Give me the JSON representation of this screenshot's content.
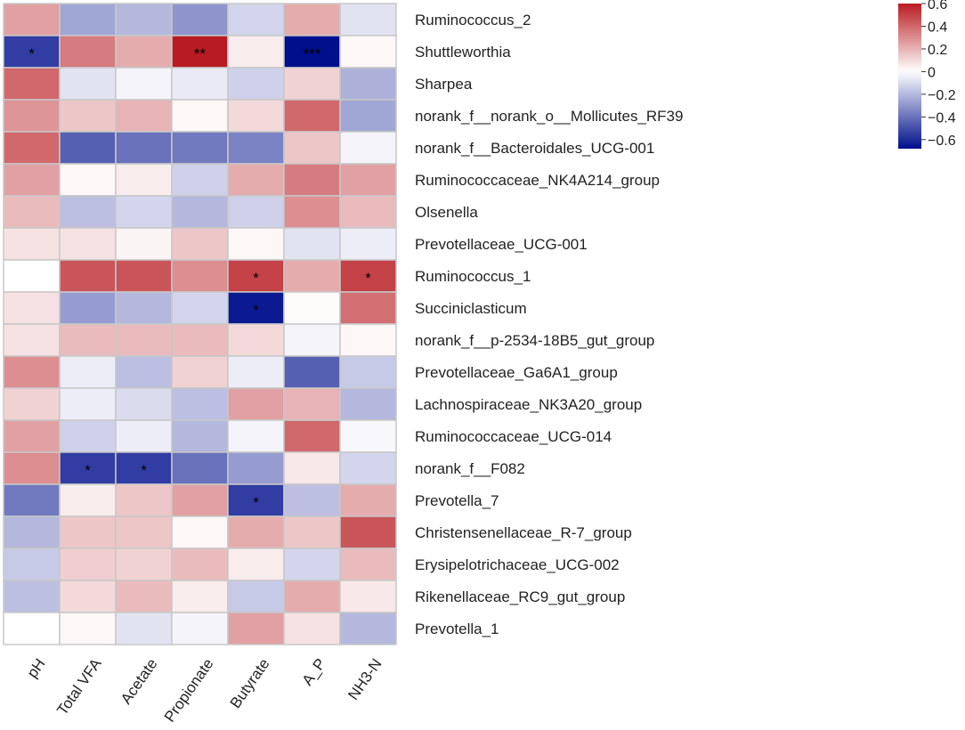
{
  "chart_data": {
    "type": "heatmap",
    "title": "",
    "columns": [
      "pH",
      "Total VFA",
      "Acetate",
      "Propionate",
      "Butyrate",
      "A_P",
      "NH3-N"
    ],
    "rows": [
      "Ruminococcus_2",
      "Shuttleworthia",
      "Sharpea",
      "norank_f__norank_o__Mollicutes_RF39",
      "norank_f__Bacteroidales_UCG-001",
      "Ruminococcaceae_NK4A214_group",
      "Olsenella",
      "Prevotellaceae_UCG-001",
      "Ruminococcus_1",
      "Succiniclasticum",
      "norank_f__p-2534-18B5_gut_group",
      "Prevotellaceae_Ga6A1_group",
      "Lachnospiraceae_NK3A20_group",
      "Ruminococcaceae_UCG-014",
      "norank_f__F082",
      "Prevotella_7",
      "Christensenellaceae_R-7_group",
      "Erysipelotrichaceae_UCG-002",
      "Rikenellaceae_RC9_gut_group",
      "Prevotella_1"
    ],
    "values": [
      [
        0.25,
        -0.25,
        -0.2,
        -0.3,
        -0.12,
        0.22,
        -0.08
      ],
      [
        -0.55,
        0.35,
        0.22,
        0.6,
        0.05,
        -0.68,
        0.02
      ],
      [
        0.4,
        -0.08,
        -0.03,
        -0.06,
        -0.13,
        0.12,
        -0.22
      ],
      [
        0.28,
        0.15,
        0.2,
        0.02,
        0.1,
        0.4,
        -0.25
      ],
      [
        0.4,
        -0.45,
        -0.4,
        -0.38,
        -0.35,
        0.15,
        -0.03
      ],
      [
        0.25,
        0.02,
        0.05,
        -0.13,
        0.22,
        0.35,
        0.25
      ],
      [
        0.18,
        -0.18,
        -0.12,
        -0.2,
        -0.13,
        0.3,
        0.18
      ],
      [
        0.08,
        0.08,
        0.03,
        0.15,
        0.02,
        -0.08,
        -0.05
      ],
      [
        0.0,
        0.45,
        0.45,
        0.3,
        0.5,
        0.22,
        0.5
      ],
      [
        0.08,
        -0.28,
        -0.2,
        -0.12,
        -0.65,
        0.01,
        0.38
      ],
      [
        0.08,
        0.18,
        0.18,
        0.18,
        0.1,
        -0.03,
        0.02
      ],
      [
        0.3,
        -0.05,
        -0.18,
        0.12,
        -0.05,
        -0.45,
        -0.15
      ],
      [
        0.12,
        -0.05,
        -0.1,
        -0.18,
        0.25,
        0.2,
        -0.2
      ],
      [
        0.25,
        -0.13,
        -0.05,
        -0.2,
        -0.03,
        0.4,
        -0.02
      ],
      [
        0.3,
        -0.55,
        -0.55,
        -0.4,
        -0.28,
        0.06,
        -0.12
      ],
      [
        -0.38,
        0.05,
        0.15,
        0.25,
        -0.55,
        -0.18,
        0.22
      ],
      [
        -0.2,
        0.15,
        0.15,
        0.02,
        0.22,
        0.15,
        0.45
      ],
      [
        -0.15,
        0.13,
        0.12,
        0.18,
        0.05,
        -0.12,
        0.18
      ],
      [
        -0.18,
        0.1,
        0.18,
        0.05,
        -0.15,
        0.22,
        0.06
      ],
      [
        0.0,
        0.02,
        -0.08,
        -0.03,
        0.25,
        0.08,
        -0.2
      ]
    ],
    "annotations": [
      [
        "",
        "",
        "",
        "",
        "",
        "",
        ""
      ],
      [
        "*",
        "",
        "",
        "**",
        "",
        "***",
        ""
      ],
      [
        "",
        "",
        "",
        "",
        "",
        "",
        ""
      ],
      [
        "",
        "",
        "",
        "",
        "",
        "",
        ""
      ],
      [
        "",
        "",
        "",
        "",
        "",
        "",
        ""
      ],
      [
        "",
        "",
        "",
        "",
        "",
        "",
        ""
      ],
      [
        "",
        "",
        "",
        "",
        "",
        "",
        ""
      ],
      [
        "",
        "",
        "",
        "",
        "",
        "",
        ""
      ],
      [
        "",
        "",
        "",
        "",
        "*",
        "",
        "*"
      ],
      [
        "",
        "",
        "",
        "",
        "*",
        "",
        ""
      ],
      [
        "",
        "",
        "",
        "",
        "",
        "",
        ""
      ],
      [
        "",
        "",
        "",
        "",
        "",
        "",
        ""
      ],
      [
        "",
        "",
        "",
        "",
        "",
        "",
        ""
      ],
      [
        "",
        "",
        "",
        "",
        "",
        "",
        ""
      ],
      [
        "",
        "*",
        "*",
        "",
        "",
        "",
        ""
      ],
      [
        "",
        "",
        "",
        "",
        "*",
        "",
        ""
      ],
      [
        "",
        "",
        "",
        "",
        "",
        "",
        ""
      ],
      [
        "",
        "",
        "",
        "",
        "",
        "",
        ""
      ],
      [
        "",
        "",
        "",
        "",
        "",
        "",
        ""
      ],
      [
        "",
        "",
        "",
        "",
        "",
        "",
        ""
      ]
    ],
    "color_range": [
      -0.68,
      0.6
    ],
    "colors": {
      "low": "#000f8c",
      "mid": "#ffffff",
      "high": "#b81c22"
    },
    "colorbar_ticks": [
      0.6,
      0.4,
      0.2,
      0,
      -0.2,
      -0.4,
      -0.6
    ],
    "colorbar_tick_labels": [
      "0.6",
      "0.4",
      "0.2",
      "0",
      "−0.2",
      "−0.4",
      "−0.6"
    ],
    "legend_position": "top-right",
    "grid_color": "#c8c8c8"
  }
}
